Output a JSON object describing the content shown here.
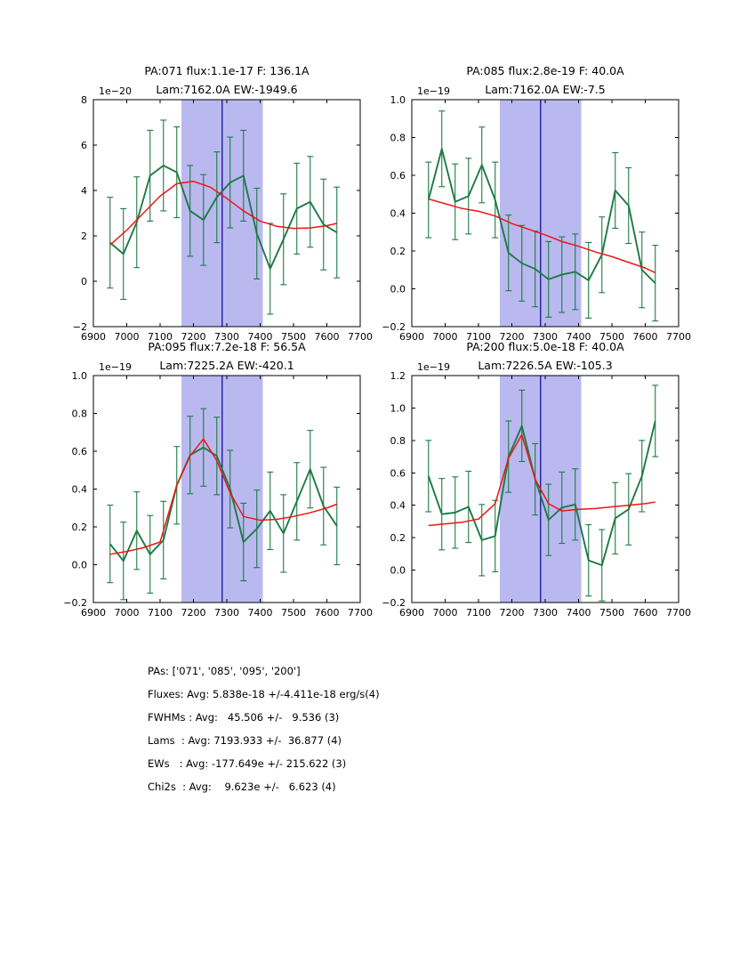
{
  "colors": {
    "data_green": "#1d7a45",
    "fit_red": "#ef1515",
    "band_fill": "#b9b9ef",
    "center_line": "#2626aa",
    "frame": "#000000",
    "text": "#000000"
  },
  "chart_data": [
    {
      "type": "line",
      "title": "PA:071 flux:1.1e-17 F: 136.1A",
      "subtitle": "Lam:7162.0A EW:-1949.6",
      "offset_label": "1e−20",
      "xlim": [
        6900,
        7700
      ],
      "ylim": [
        -2,
        8
      ],
      "xtick_vals": [
        6900,
        7000,
        7100,
        7200,
        7300,
        7400,
        7500,
        7600,
        7700
      ],
      "xtick_labels": [
        "6900",
        "7000",
        "7100",
        "7200",
        "7300",
        "7400",
        "7500",
        "7600",
        "7700"
      ],
      "ytick_vals": [
        -2,
        0,
        2,
        4,
        6,
        8
      ],
      "ytick_labels": [
        "−2",
        "0",
        "2",
        "4",
        "6",
        "8"
      ],
      "band_x": [
        7164,
        7408
      ],
      "vline_x": 7286,
      "grid": false,
      "x": [
        6950,
        6990,
        7030,
        7070,
        7110,
        7150,
        7190,
        7230,
        7270,
        7310,
        7350,
        7390,
        7430,
        7470,
        7510,
        7550,
        7590,
        7630
      ],
      "series": [
        {
          "name": "spectrum",
          "color_key": "data_green",
          "yerr": 2.0,
          "values": [
            1.7,
            1.2,
            2.6,
            4.65,
            5.1,
            4.8,
            3.1,
            2.7,
            3.7,
            4.35,
            4.65,
            2.1,
            0.55,
            1.85,
            3.2,
            3.5,
            2.5,
            2.15
          ]
        },
        {
          "name": "gaussian-fit",
          "color_key": "fit_red",
          "x": [
            6950,
            7000,
            7050,
            7100,
            7150,
            7200,
            7250,
            7300,
            7350,
            7400,
            7450,
            7500,
            7550,
            7600,
            7630
          ],
          "values": [
            1.6,
            2.25,
            3.0,
            3.75,
            4.3,
            4.4,
            4.15,
            3.65,
            3.1,
            2.65,
            2.42,
            2.33,
            2.35,
            2.45,
            2.55
          ]
        }
      ]
    },
    {
      "type": "line",
      "title": "PA:085 flux:2.8e-19 F: 40.0A",
      "subtitle": "Lam:7162.0A EW:-7.5",
      "offset_label": "1e−19",
      "xlim": [
        6900,
        7700
      ],
      "ylim": [
        -0.2,
        1.0
      ],
      "xtick_vals": [
        6900,
        7000,
        7100,
        7200,
        7300,
        7400,
        7500,
        7600,
        7700
      ],
      "xtick_labels": [
        "6900",
        "7000",
        "7100",
        "7200",
        "7300",
        "7400",
        "7500",
        "7600",
        "7700"
      ],
      "ytick_vals": [
        -0.2,
        0.0,
        0.2,
        0.4,
        0.6,
        0.8,
        1.0
      ],
      "ytick_labels": [
        "−0.2",
        "0.0",
        "0.2",
        "0.4",
        "0.6",
        "0.8",
        "1.0"
      ],
      "band_x": [
        7164,
        7408
      ],
      "vline_x": 7286,
      "grid": false,
      "x": [
        6950,
        6990,
        7030,
        7070,
        7110,
        7150,
        7190,
        7230,
        7270,
        7310,
        7350,
        7390,
        7430,
        7470,
        7510,
        7550,
        7590,
        7630
      ],
      "series": [
        {
          "name": "spectrum",
          "color_key": "data_green",
          "yerr": 0.2,
          "values": [
            0.47,
            0.74,
            0.46,
            0.49,
            0.655,
            0.47,
            0.19,
            0.135,
            0.105,
            0.05,
            0.075,
            0.09,
            0.045,
            0.18,
            0.52,
            0.44,
            0.1,
            0.03
          ]
        },
        {
          "name": "gaussian-fit",
          "color_key": "fit_red",
          "x": [
            6950,
            7000,
            7050,
            7100,
            7150,
            7200,
            7250,
            7300,
            7350,
            7400,
            7450,
            7500,
            7550,
            7600,
            7630
          ],
          "values": [
            0.475,
            0.45,
            0.425,
            0.41,
            0.385,
            0.345,
            0.315,
            0.285,
            0.25,
            0.225,
            0.195,
            0.17,
            0.14,
            0.11,
            0.085
          ]
        }
      ]
    },
    {
      "type": "line",
      "title": "PA:095 flux:7.2e-18 F: 56.5A",
      "subtitle": "Lam:7225.2A EW:-420.1",
      "offset_label": "1e−19",
      "xlim": [
        6900,
        7700
      ],
      "ylim": [
        -0.2,
        1.0
      ],
      "xtick_vals": [
        6900,
        7000,
        7100,
        7200,
        7300,
        7400,
        7500,
        7600,
        7700
      ],
      "xtick_labels": [
        "6900",
        "7000",
        "7100",
        "7200",
        "7300",
        "7400",
        "7500",
        "7600",
        "7700"
      ],
      "ytick_vals": [
        -0.2,
        0.0,
        0.2,
        0.4,
        0.6,
        0.8,
        1.0
      ],
      "ytick_labels": [
        "−0.2",
        "0.0",
        "0.2",
        "0.4",
        "0.6",
        "0.8",
        "1.0"
      ],
      "band_x": [
        7164,
        7408
      ],
      "vline_x": 7286,
      "grid": false,
      "x": [
        6950,
        6990,
        7030,
        7070,
        7110,
        7150,
        7190,
        7230,
        7270,
        7310,
        7350,
        7390,
        7430,
        7470,
        7510,
        7550,
        7590,
        7630
      ],
      "series": [
        {
          "name": "spectrum",
          "color_key": "data_green",
          "yerr": 0.205,
          "values": [
            0.11,
            0.02,
            0.18,
            0.055,
            0.13,
            0.42,
            0.58,
            0.62,
            0.575,
            0.4,
            0.12,
            0.19,
            0.285,
            0.165,
            0.335,
            0.505,
            0.31,
            0.205
          ]
        },
        {
          "name": "gaussian-fit",
          "color_key": "fit_red",
          "x": [
            6950,
            7000,
            7050,
            7100,
            7150,
            7190,
            7230,
            7270,
            7310,
            7350,
            7400,
            7450,
            7500,
            7550,
            7600,
            7630
          ],
          "values": [
            0.055,
            0.07,
            0.09,
            0.12,
            0.42,
            0.575,
            0.665,
            0.55,
            0.38,
            0.255,
            0.235,
            0.24,
            0.255,
            0.275,
            0.3,
            0.32
          ]
        }
      ]
    },
    {
      "type": "line",
      "title": "PA:200 flux:5.0e-18 F: 40.0A",
      "subtitle": "Lam:7226.5A EW:-105.3",
      "offset_label": "1e−19",
      "xlim": [
        6900,
        7700
      ],
      "ylim": [
        -0.2,
        1.2
      ],
      "xtick_vals": [
        6900,
        7000,
        7100,
        7200,
        7300,
        7400,
        7500,
        7600,
        7700
      ],
      "xtick_labels": [
        "6900",
        "7000",
        "7100",
        "7200",
        "7300",
        "7400",
        "7500",
        "7600",
        "7700"
      ],
      "ytick_vals": [
        -0.2,
        0.0,
        0.2,
        0.4,
        0.6,
        0.8,
        1.0,
        1.2
      ],
      "ytick_labels": [
        "−0.2",
        "0.0",
        "0.2",
        "0.4",
        "0.6",
        "0.8",
        "1.0",
        "1.2"
      ],
      "band_x": [
        7164,
        7408
      ],
      "vline_x": 7286,
      "grid": false,
      "x": [
        6950,
        6990,
        7030,
        7070,
        7110,
        7150,
        7190,
        7230,
        7270,
        7310,
        7350,
        7390,
        7430,
        7470,
        7510,
        7550,
        7590,
        7630
      ],
      "series": [
        {
          "name": "spectrum",
          "color_key": "data_green",
          "yerr": 0.22,
          "values": [
            0.58,
            0.345,
            0.355,
            0.39,
            0.185,
            0.21,
            0.7,
            0.89,
            0.56,
            0.31,
            0.385,
            0.405,
            0.06,
            0.03,
            0.32,
            0.375,
            0.58,
            0.92
          ]
        },
        {
          "name": "gaussian-fit",
          "color_key": "fit_red",
          "x": [
            6950,
            7000,
            7050,
            7100,
            7150,
            7190,
            7230,
            7270,
            7310,
            7350,
            7400,
            7450,
            7500,
            7550,
            7600,
            7630
          ],
          "values": [
            0.275,
            0.285,
            0.295,
            0.315,
            0.41,
            0.69,
            0.835,
            0.56,
            0.41,
            0.365,
            0.375,
            0.38,
            0.39,
            0.4,
            0.41,
            0.42
          ]
        }
      ]
    }
  ],
  "summary": {
    "lines": [
      "PAs: ['071', '085', '095', '200']",
      "Fluxes: Avg: 5.838e-18 +/-4.411e-18 erg/s(4)",
      "FWHMs : Avg:   45.506 +/-   9.536 (3)",
      "Lams  : Avg: 7193.933 +/-  36.877 (4)",
      "EWs   : Avg: -177.649e +/- 215.622 (3)",
      "Chi2s  : Avg:    9.623e +/-   6.623 (4)"
    ]
  }
}
